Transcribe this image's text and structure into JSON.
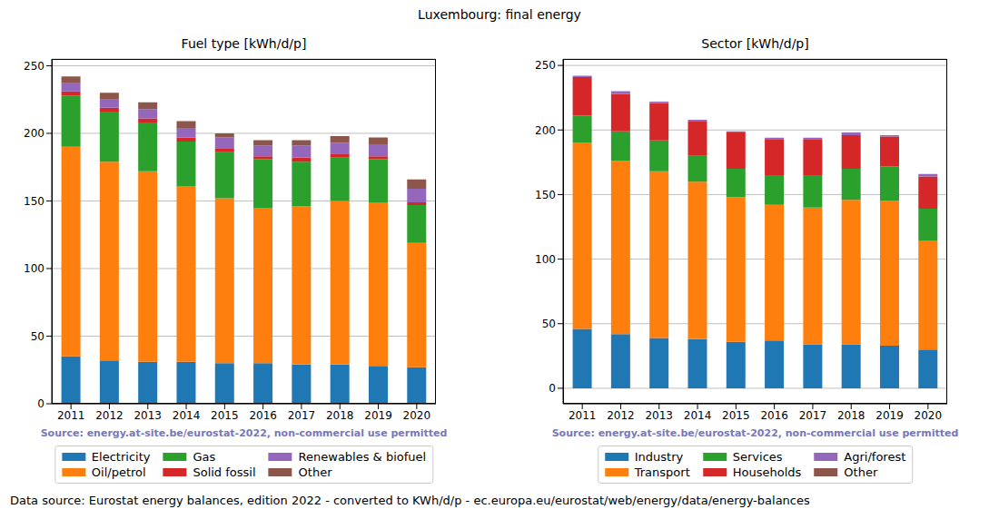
{
  "title": "Luxembourg: final energy",
  "footnote": "Data source: Eurostat energy balances, edition 2022 - converted to KWh/d/p - ec.europa.eu/eurostat/web/energy/data/energy-balances",
  "chart_data": [
    {
      "type": "bar",
      "title": "Fuel type [kWh/d/p]",
      "annotation": "Source: energy.at-site.be/eurostat-2022, non-commercial use permitted",
      "categories": [
        "2011",
        "2012",
        "2013",
        "2014",
        "2015",
        "2016",
        "2017",
        "2018",
        "2019",
        "2020"
      ],
      "series": [
        {
          "name": "Electricity",
          "color": "#1f77b4",
          "values": [
            35,
            32,
            31,
            31,
            30,
            30,
            29,
            29,
            28,
            27
          ]
        },
        {
          "name": "Oil/petrol",
          "color": "#ff7f0e",
          "values": [
            155,
            147,
            141,
            130,
            122,
            115,
            117,
            121,
            121,
            92
          ]
        },
        {
          "name": "Gas",
          "color": "#2ca02c",
          "values": [
            38,
            37,
            36,
            33,
            34,
            36,
            33,
            32,
            32,
            28
          ]
        },
        {
          "name": "Solid fossil",
          "color": "#d62728",
          "values": [
            3,
            3,
            3,
            3,
            3,
            2,
            3,
            3,
            2,
            2
          ]
        },
        {
          "name": "Renewables & biofuel",
          "color": "#9467bd",
          "values": [
            6,
            6,
            7,
            7,
            8,
            8,
            9,
            8,
            9,
            10
          ]
        },
        {
          "name": "Other",
          "color": "#8c564b",
          "values": [
            5,
            5,
            5,
            5,
            3,
            4,
            4,
            5,
            5,
            7
          ]
        }
      ],
      "ylim": [
        0,
        255
      ],
      "yticks": [
        0,
        50,
        100,
        150,
        200,
        250
      ],
      "grid": true,
      "stacked": true
    },
    {
      "type": "bar",
      "title": "Sector [kWh/d/p]",
      "annotation": "Source: energy.at-site.be/eurostat-2022, non-commercial use permitted",
      "categories": [
        "2011",
        "2012",
        "2013",
        "2014",
        "2015",
        "2016",
        "2017",
        "2018",
        "2019",
        "2020"
      ],
      "series": [
        {
          "name": "Industry",
          "color": "#1f77b4",
          "values": [
            46,
            42,
            39,
            38,
            36,
            37,
            34,
            34,
            33,
            30
          ]
        },
        {
          "name": "Transport",
          "color": "#ff7f0e",
          "values": [
            144,
            134,
            129,
            122,
            112,
            105,
            106,
            112,
            112,
            84
          ]
        },
        {
          "name": "Services",
          "color": "#2ca02c",
          "values": [
            21,
            23,
            24,
            20,
            22,
            23,
            25,
            24,
            27,
            25
          ]
        },
        {
          "name": "Households",
          "color": "#d62728",
          "values": [
            30,
            29,
            29,
            27,
            28,
            28,
            28,
            26,
            23,
            25
          ]
        },
        {
          "name": "Agri/forest",
          "color": "#9467bd",
          "values": [
            1,
            2,
            1,
            1,
            1,
            1,
            1,
            2,
            1,
            2
          ]
        },
        {
          "name": "Other",
          "color": "#8c564b",
          "values": [
            0,
            0,
            0,
            0,
            0,
            0,
            0,
            0,
            0,
            0
          ]
        }
      ],
      "ylim": [
        -12,
        255
      ],
      "yticks": [
        0,
        50,
        100,
        150,
        200,
        250
      ],
      "grid": true,
      "stacked": true
    }
  ]
}
